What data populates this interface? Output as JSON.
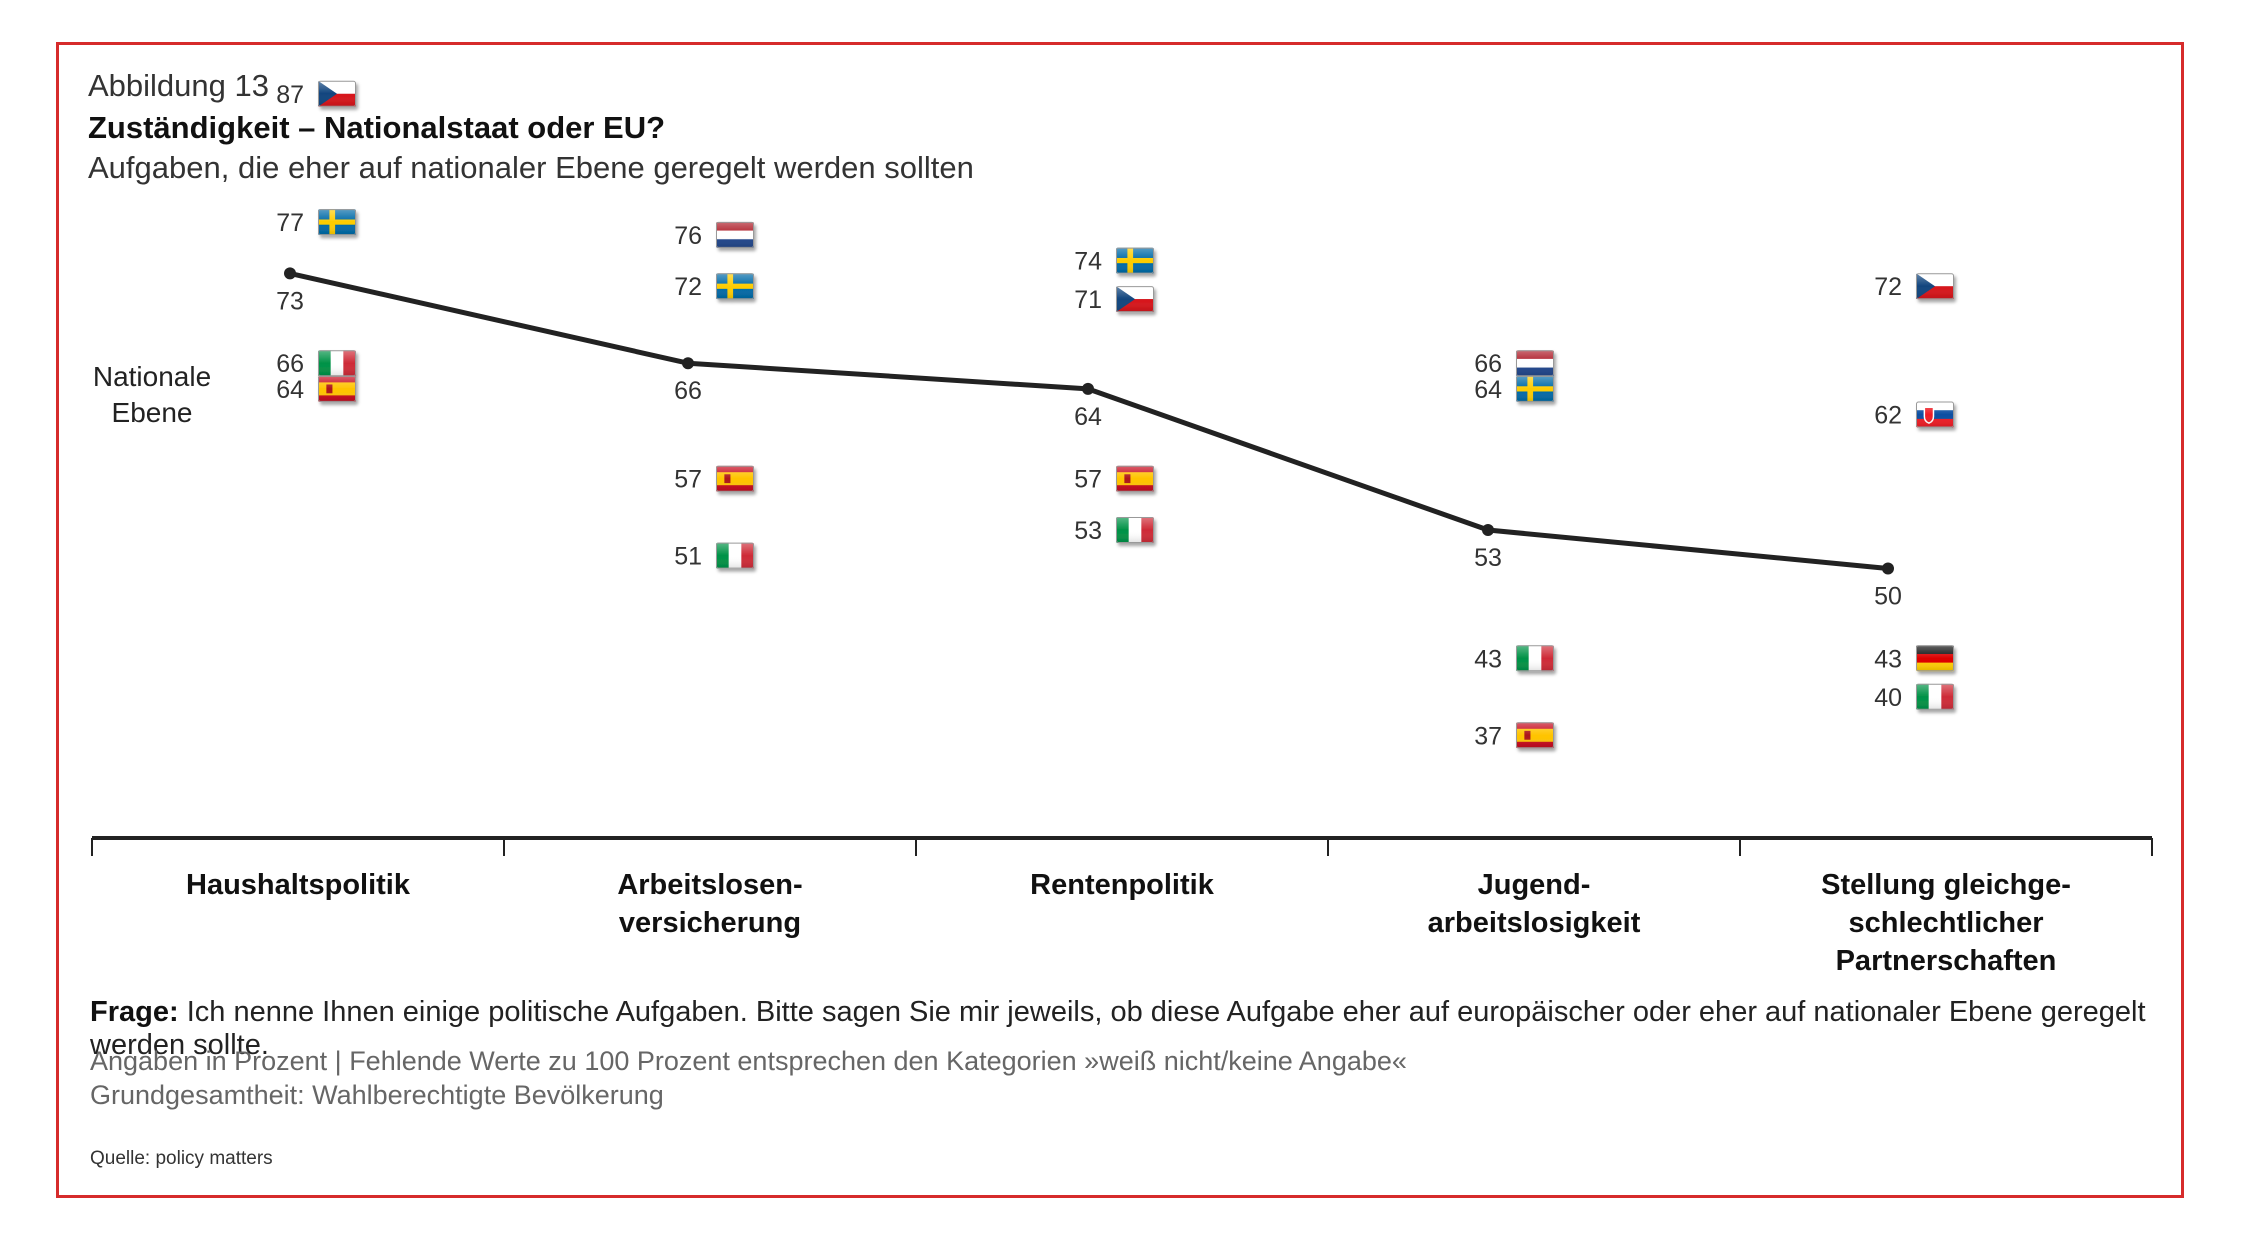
{
  "header": {
    "kicker": "Abbildung 13",
    "title": "Zuständigkeit – Nationalstaat oder EU?",
    "subtitle": "Aufgaben, die eher auf nationaler Ebene geregelt werden sollten"
  },
  "chart_data": {
    "type": "line",
    "categories": [
      "Haushaltspolitik",
      "Arbeitslosen-\nversicherung",
      "Rentenpolitik",
      "Jugend-\narbeitslosigkeit",
      "Stellung gleichge-\nschlechtlicher Partnerschaften"
    ],
    "series": [
      {
        "name": "Nationale\nEbene",
        "values": [
          73,
          66,
          64,
          53,
          50
        ]
      }
    ],
    "country_markers": [
      [
        {
          "country": "CZ",
          "icon": "flag-czech-republic-icon",
          "value": 87
        },
        {
          "country": "SE",
          "icon": "flag-sweden-icon",
          "value": 77
        },
        {
          "country": "IT",
          "icon": "flag-italy-icon",
          "value": 66
        },
        {
          "country": "ES",
          "icon": "flag-spain-icon",
          "value": 64
        }
      ],
      [
        {
          "country": "NL",
          "icon": "flag-netherlands-icon",
          "value": 76
        },
        {
          "country": "SE",
          "icon": "flag-sweden-icon",
          "value": 72
        },
        {
          "country": "ES",
          "icon": "flag-spain-icon",
          "value": 57
        },
        {
          "country": "IT",
          "icon": "flag-italy-icon",
          "value": 51
        }
      ],
      [
        {
          "country": "SE",
          "icon": "flag-sweden-icon",
          "value": 74
        },
        {
          "country": "CZ",
          "icon": "flag-czech-republic-icon",
          "value": 71
        },
        {
          "country": "ES",
          "icon": "flag-spain-icon",
          "value": 57
        },
        {
          "country": "IT",
          "icon": "flag-italy-icon",
          "value": 53
        }
      ],
      [
        {
          "country": "NL",
          "icon": "flag-netherlands-icon",
          "value": 66
        },
        {
          "country": "SE",
          "icon": "flag-sweden-icon",
          "value": 64
        },
        {
          "country": "IT",
          "icon": "flag-italy-icon",
          "value": 43
        },
        {
          "country": "ES",
          "icon": "flag-spain-icon",
          "value": 37
        }
      ],
      [
        {
          "country": "CZ",
          "icon": "flag-czech-republic-icon",
          "value": 72
        },
        {
          "country": "SK",
          "icon": "flag-slovakia-icon",
          "value": 62
        },
        {
          "country": "DE",
          "icon": "flag-germany-icon",
          "value": 43
        },
        {
          "country": "IT",
          "icon": "flag-italy-icon",
          "value": 40
        }
      ]
    ],
    "unit": "Prozent",
    "grid": false,
    "line_color": "#222222"
  },
  "footer": {
    "question_label": "Frage:",
    "question_text": " Ich nenne Ihnen einige politische Aufgaben. Bitte sagen Sie mir jeweils, ob diese Aufgabe eher auf europäischer oder eher auf nationaler Ebene geregelt werden sollte.",
    "note_1": "Angaben in Prozent | Fehlende Werte zu 100 Prozent entsprechen den Kategorien »weiß nicht/keine Angabe«",
    "note_2": "Grundgesamtheit: Wahlberechtigte Bevölkerung",
    "source": "Quelle: policy matters"
  },
  "colors": {
    "frame": "#d62b2b",
    "line": "#222222"
  }
}
